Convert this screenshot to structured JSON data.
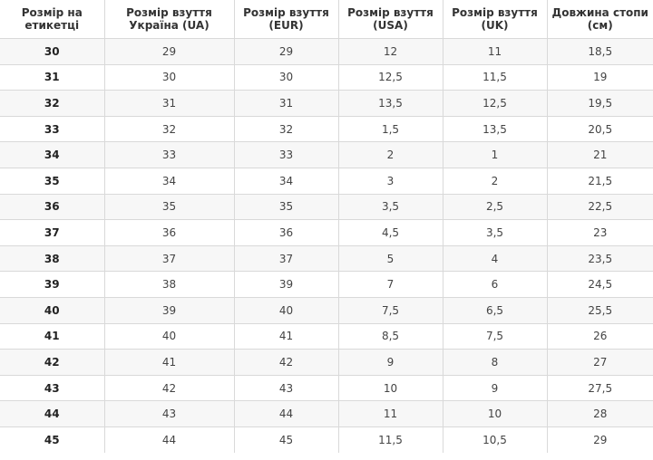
{
  "table": {
    "headers": [
      "Розмір на етикетці",
      "Розмір взуття Україна (UA)",
      "Розмір взуття (EUR)",
      "Розмір взуття (USA)",
      "Розмір взуття (UK)",
      "Довжина стопи (см)"
    ],
    "rows": [
      [
        "30",
        "29",
        "29",
        "12",
        "11",
        "18,5"
      ],
      [
        "31",
        "30",
        "30",
        "12,5",
        "11,5",
        "19"
      ],
      [
        "32",
        "31",
        "31",
        "13,5",
        "12,5",
        "19,5"
      ],
      [
        "33",
        "32",
        "32",
        "1,5",
        "13,5",
        "20,5"
      ],
      [
        "34",
        "33",
        "33",
        "2",
        "1",
        "21"
      ],
      [
        "35",
        "34",
        "34",
        "3",
        "2",
        "21,5"
      ],
      [
        "36",
        "35",
        "35",
        "3,5",
        "2,5",
        "22,5"
      ],
      [
        "37",
        "36",
        "36",
        "4,5",
        "3,5",
        "23"
      ],
      [
        "38",
        "37",
        "37",
        "5",
        "4",
        "23,5"
      ],
      [
        "39",
        "38",
        "39",
        "7",
        "6",
        "24,5"
      ],
      [
        "40",
        "39",
        "40",
        "7,5",
        "6,5",
        "25,5"
      ],
      [
        "41",
        "40",
        "41",
        "8,5",
        "7,5",
        "26"
      ],
      [
        "42",
        "41",
        "42",
        "9",
        "8",
        "27"
      ],
      [
        "43",
        "42",
        "43",
        "10",
        "9",
        "27,5"
      ],
      [
        "44",
        "43",
        "44",
        "11",
        "10",
        "28"
      ],
      [
        "45",
        "44",
        "45",
        "11,5",
        "10,5",
        "29"
      ]
    ]
  }
}
